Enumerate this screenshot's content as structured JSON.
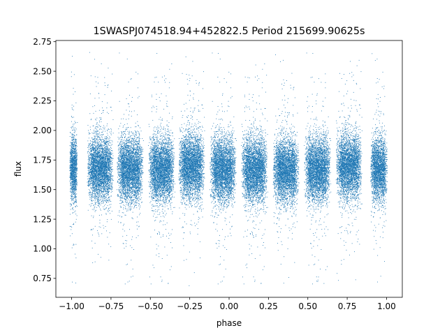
{
  "chart_data": {
    "type": "scatter",
    "title": "1SWASPJ074518.94+452822.5 Period 215699.90625s",
    "xlabel": "phase",
    "ylabel": "flux",
    "xlim": [
      -1.1,
      1.1
    ],
    "ylim": [
      0.59,
      2.76
    ],
    "xticks": [
      -1.0,
      -0.75,
      -0.5,
      -0.25,
      0.0,
      0.25,
      0.5,
      0.75,
      1.0
    ],
    "xtick_labels": [
      "−1.00",
      "−0.75",
      "−0.50",
      "−0.25",
      "0.00",
      "0.25",
      "0.50",
      "0.75",
      "1.00"
    ],
    "yticks": [
      0.75,
      1.0,
      1.25,
      1.5,
      1.75,
      2.0,
      2.25,
      2.5,
      2.75
    ],
    "ytick_labels": [
      "0.75",
      "1.00",
      "1.25",
      "1.50",
      "1.75",
      "2.00",
      "2.25",
      "2.50",
      "2.75"
    ],
    "grid": false,
    "marker_color": "#1f77b4",
    "phase_clusters": [
      {
        "center": -0.99,
        "halfwidth": 0.025,
        "mean_flux": 1.68,
        "count": 1400
      },
      {
        "center": -0.82,
        "halfwidth": 0.085,
        "mean_flux": 1.68,
        "count": 3800
      },
      {
        "center": -0.63,
        "halfwidth": 0.085,
        "mean_flux": 1.67,
        "count": 3800
      },
      {
        "center": -0.43,
        "halfwidth": 0.085,
        "mean_flux": 1.67,
        "count": 3800
      },
      {
        "center": -0.24,
        "halfwidth": 0.085,
        "mean_flux": 1.7,
        "count": 3800
      },
      {
        "center": -0.04,
        "halfwidth": 0.085,
        "mean_flux": 1.67,
        "count": 3800
      },
      {
        "center": 0.16,
        "halfwidth": 0.085,
        "mean_flux": 1.67,
        "count": 3800
      },
      {
        "center": 0.36,
        "halfwidth": 0.085,
        "mean_flux": 1.66,
        "count": 3800
      },
      {
        "center": 0.56,
        "halfwidth": 0.085,
        "mean_flux": 1.67,
        "count": 3800
      },
      {
        "center": 0.76,
        "halfwidth": 0.085,
        "mean_flux": 1.7,
        "count": 3800
      },
      {
        "center": 0.95,
        "halfwidth": 0.055,
        "mean_flux": 1.67,
        "count": 2600
      }
    ],
    "flux_spread": 0.13,
    "flux_range": [
      0.69,
      2.68
    ]
  }
}
